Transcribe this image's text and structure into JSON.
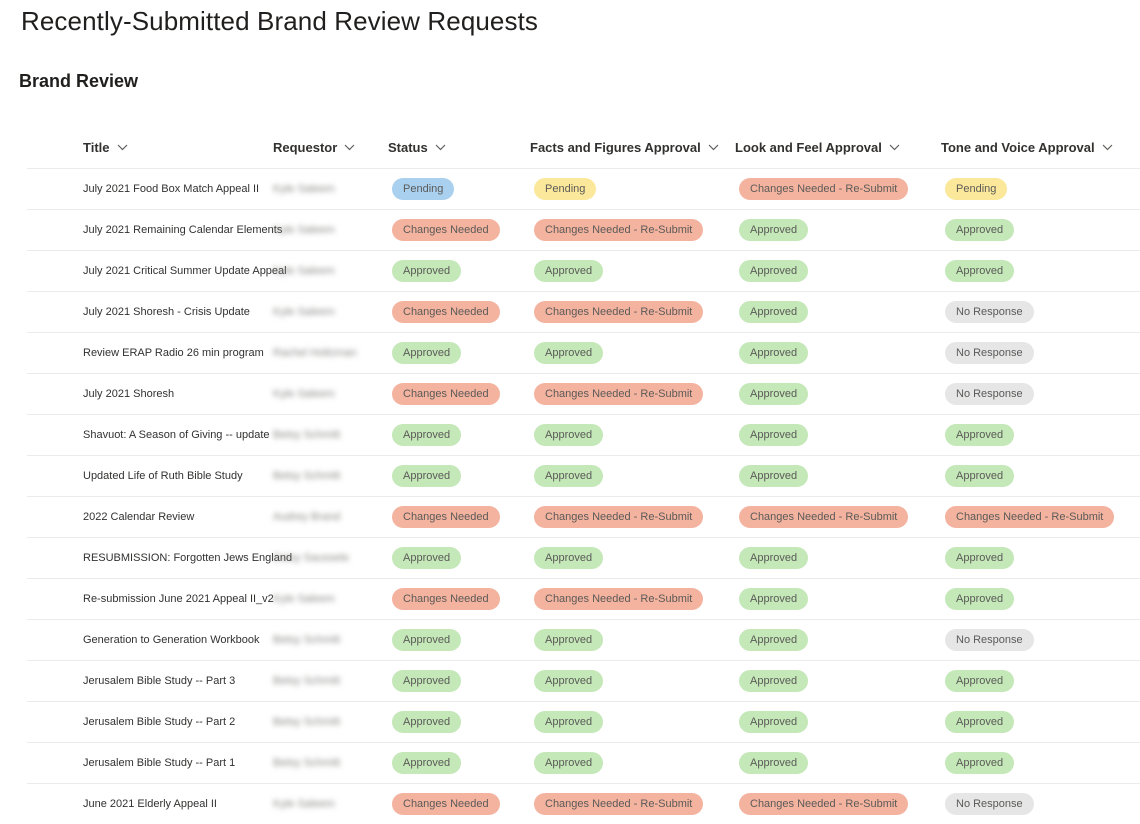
{
  "page": {
    "title": "Recently-Submitted Brand Review Requests",
    "section_title": "Brand Review"
  },
  "columns": {
    "title": "Title",
    "requestor": "Requestor",
    "status": "Status",
    "facts": "Facts and Figures Approval",
    "look": "Look and Feel Approval",
    "tone": "Tone and Voice Approval"
  },
  "status_colors": {
    "Approved": "#c4e8b8",
    "Pending-status": "#a9d0ee",
    "Pending-approval": "#fbe89b",
    "Changes Needed": "#f4b39f",
    "Changes Needed - Re-Submit": "#f4b39f",
    "No Response": "#e6e6e6"
  },
  "rows": [
    {
      "title": "July 2021 Food Box Match Appeal II",
      "requestor": "Kyle Saleem",
      "status": "Pending",
      "facts": "Pending",
      "look": "Changes Needed - Re-Submit",
      "tone": "Pending"
    },
    {
      "title": "July 2021 Remaining Calendar Elements",
      "requestor": "Kyle Saleem",
      "status": "Changes Needed",
      "facts": "Changes Needed - Re-Submit",
      "look": "Approved",
      "tone": "Approved"
    },
    {
      "title": "July 2021 Critical Summer Update Appeal",
      "requestor": "Kyle Saleem",
      "status": "Approved",
      "facts": "Approved",
      "look": "Approved",
      "tone": "Approved"
    },
    {
      "title": "July 2021 Shoresh - Crisis Update",
      "requestor": "Kyle Saleem",
      "status": "Changes Needed",
      "facts": "Changes Needed - Re-Submit",
      "look": "Approved",
      "tone": "No Response"
    },
    {
      "title": "Review ERAP Radio 26 min program",
      "requestor": "Rachel Holtzman",
      "status": "Approved",
      "facts": "Approved",
      "look": "Approved",
      "tone": "No Response"
    },
    {
      "title": "July 2021 Shoresh",
      "requestor": "Kyle Saleem",
      "status": "Changes Needed",
      "facts": "Changes Needed - Re-Submit",
      "look": "Approved",
      "tone": "No Response"
    },
    {
      "title": "Shavuot: A Season of Giving -- update",
      "requestor": "Betsy Schmitt",
      "status": "Approved",
      "facts": "Approved",
      "look": "Approved",
      "tone": "Approved"
    },
    {
      "title": "Updated Life of Ruth Bible Study",
      "requestor": "Betsy Schmitt",
      "status": "Approved",
      "facts": "Approved",
      "look": "Approved",
      "tone": "Approved"
    },
    {
      "title": "2022 Calendar Review",
      "requestor": "Audrey Brand",
      "status": "Changes Needed",
      "facts": "Changes Needed - Re-Submit",
      "look": "Changes Needed - Re-Submit",
      "tone": "Changes Needed - Re-Submit"
    },
    {
      "title": "RESUBMISSION: Forgotten Jews England",
      "requestor": "Daisy Saussele",
      "status": "Approved",
      "facts": "Approved",
      "look": "Approved",
      "tone": "Approved"
    },
    {
      "title": "Re-submission June 2021 Appeal II_v2",
      "requestor": "Kyle Saleem",
      "status": "Changes Needed",
      "facts": "Changes Needed - Re-Submit",
      "look": "Approved",
      "tone": "Approved"
    },
    {
      "title": "Generation to Generation Workbook",
      "requestor": "Betsy Schmitt",
      "status": "Approved",
      "facts": "Approved",
      "look": "Approved",
      "tone": "No Response"
    },
    {
      "title": "Jerusalem Bible Study -- Part 3",
      "requestor": "Betsy Schmitt",
      "status": "Approved",
      "facts": "Approved",
      "look": "Approved",
      "tone": "Approved"
    },
    {
      "title": "Jerusalem Bible Study -- Part 2",
      "requestor": "Betsy Schmitt",
      "status": "Approved",
      "facts": "Approved",
      "look": "Approved",
      "tone": "Approved"
    },
    {
      "title": "Jerusalem Bible Study -- Part 1",
      "requestor": "Betsy Schmitt",
      "status": "Approved",
      "facts": "Approved",
      "look": "Approved",
      "tone": "Approved"
    },
    {
      "title": "June 2021 Elderly Appeal II",
      "requestor": "Kyle Saleem",
      "status": "Changes Needed",
      "facts": "Changes Needed - Re-Submit",
      "look": "Changes Needed - Re-Submit",
      "tone": "No Response"
    }
  ]
}
